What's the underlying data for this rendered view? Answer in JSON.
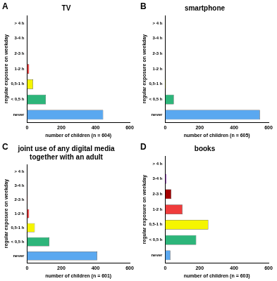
{
  "chart_data": [
    {
      "type": "bar",
      "orientation": "horizontal",
      "title": "TV",
      "annotations": [
        "A"
      ],
      "x_label": "number of children (n = 604)",
      "y_label": "regular exposure on weekday",
      "categories": [
        "> 4 h",
        "3-4 h",
        "2-3 h",
        "1-2 h",
        "0,5-1 h",
        "< 0,5 h",
        "never"
      ],
      "values": [
        1,
        0,
        1,
        12,
        35,
        110,
        445
      ],
      "colors": [
        "#3399ff",
        "#9933cc",
        "#a50000",
        "#f03c3c",
        "#f5f500",
        "#2db57a",
        "#5aa8f0"
      ],
      "xlim": [
        0,
        600
      ],
      "xticks": [
        0,
        200,
        400,
        600
      ],
      "grid": false
    },
    {
      "type": "bar",
      "orientation": "horizontal",
      "title": "smartphone",
      "annotations": [
        "B"
      ],
      "x_label": "number of children (n = 605)",
      "y_label": "regular exposure on weekday",
      "categories": [
        "> 4 h",
        "3-4 h",
        "2-3 h",
        "1-2 h",
        "0,5-1 h",
        "< 0,5 h",
        "never"
      ],
      "values": [
        0,
        0,
        0,
        1,
        4,
        50,
        550
      ],
      "colors": [
        "#3399ff",
        "#9933cc",
        "#a50000",
        "#f03c3c",
        "#f5f500",
        "#2db57a",
        "#5aa8f0"
      ],
      "xlim": [
        0,
        600
      ],
      "xticks": [
        0,
        200,
        400,
        600
      ],
      "grid": false
    },
    {
      "type": "bar",
      "orientation": "horizontal",
      "title": [
        "joint use of any digital media",
        "together with an adult"
      ],
      "annotations": [
        "C"
      ],
      "x_label": "number of children (n = 601)",
      "y_label": "regular exposure on weekday",
      "categories": [
        "> 4 h",
        "3-4 h",
        "2-3 h",
        "1-2 h",
        "0,5-1 h",
        "< 0,5 h",
        "never"
      ],
      "values": [
        0,
        1,
        3,
        12,
        45,
        130,
        410
      ],
      "colors": [
        "#3399ff",
        "#9933cc",
        "#a50000",
        "#f03c3c",
        "#f5f500",
        "#2db57a",
        "#5aa8f0"
      ],
      "xlim": [
        0,
        600
      ],
      "xticks": [
        0,
        200,
        400,
        600
      ],
      "grid": false
    },
    {
      "type": "bar",
      "orientation": "horizontal",
      "title": "books",
      "annotations": [
        "D"
      ],
      "x_label": "number of children (n = 603)",
      "y_label": "regular exposure on weekday",
      "categories": [
        "> 4 h",
        "3-4 h",
        "2-3 h",
        "1-2 h",
        "0,5-1 h",
        "< 0,5 h",
        "never"
      ],
      "values": [
        1,
        7,
        35,
        100,
        250,
        180,
        30
      ],
      "colors": [
        "#3399ff",
        "#9933cc",
        "#a50000",
        "#f03c3c",
        "#f5f500",
        "#2db57a",
        "#5aa8f0"
      ],
      "xlim": [
        0,
        600
      ],
      "xticks": [
        0,
        200,
        400,
        600
      ],
      "grid": false
    }
  ]
}
